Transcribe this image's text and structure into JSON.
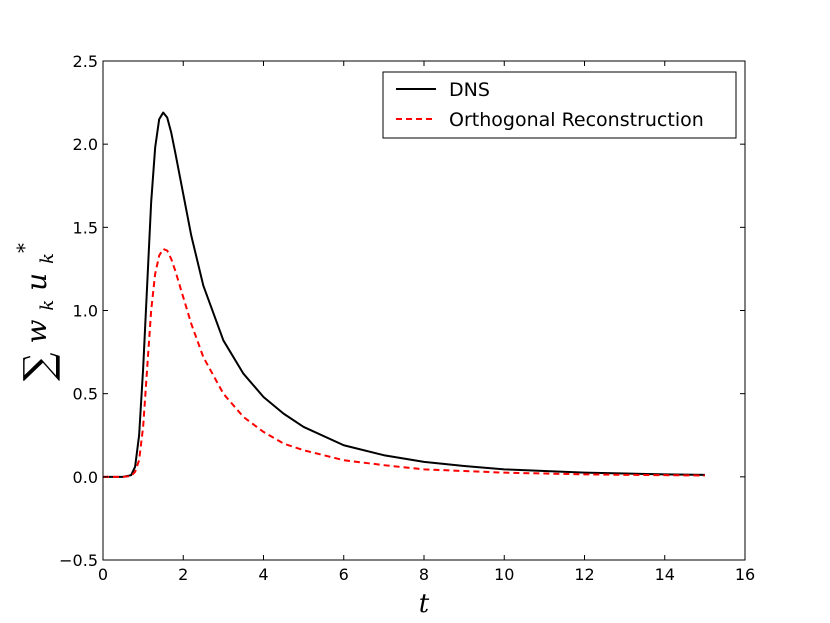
{
  "chart_data": {
    "type": "line",
    "title": "",
    "xlabel": "t",
    "ylabel": "∑ w_k u_k*",
    "ylabel_parts": {
      "sum": "∑",
      "w": "w",
      "w_sub": "k",
      "u": "u",
      "u_sub": "k",
      "u_sup": "*"
    },
    "xlim": [
      0,
      16
    ],
    "ylim": [
      -0.5,
      2.5
    ],
    "xticks": [
      0,
      2,
      4,
      6,
      8,
      10,
      12,
      14,
      16
    ],
    "xtick_labels": [
      "0",
      "2",
      "4",
      "6",
      "8",
      "10",
      "12",
      "14",
      "16"
    ],
    "yticks": [
      -0.5,
      0.0,
      0.5,
      1.0,
      1.5,
      2.0,
      2.5
    ],
    "ytick_labels": [
      "−0.5",
      "0.0",
      "0.5",
      "1.0",
      "1.5",
      "2.0",
      "2.5"
    ],
    "grid": false,
    "legend_position": "top-right",
    "x": [
      0,
      0.5,
      0.7,
      0.8,
      0.9,
      1.0,
      1.1,
      1.2,
      1.3,
      1.4,
      1.5,
      1.6,
      1.7,
      1.8,
      2.0,
      2.2,
      2.5,
      3.0,
      3.5,
      4.0,
      4.5,
      5.0,
      6.0,
      7.0,
      8.0,
      9.0,
      10.0,
      11.0,
      12.0,
      13.0,
      14.0,
      15.0
    ],
    "series": [
      {
        "name": "DNS",
        "color": "#000000",
        "style": "solid",
        "values": [
          0,
          0,
          0.01,
          0.06,
          0.25,
          0.65,
          1.15,
          1.65,
          1.98,
          2.15,
          2.19,
          2.16,
          2.07,
          1.95,
          1.7,
          1.45,
          1.15,
          0.82,
          0.62,
          0.48,
          0.38,
          0.3,
          0.19,
          0.13,
          0.09,
          0.065,
          0.045,
          0.035,
          0.025,
          0.02,
          0.015,
          0.012
        ]
      },
      {
        "name": "Orthogonal Reconstruction",
        "color": "#ff0000",
        "style": "dashed",
        "values": [
          0,
          0,
          0.005,
          0.03,
          0.1,
          0.3,
          0.65,
          1.0,
          1.22,
          1.33,
          1.37,
          1.36,
          1.31,
          1.24,
          1.08,
          0.92,
          0.72,
          0.5,
          0.36,
          0.27,
          0.2,
          0.16,
          0.1,
          0.07,
          0.045,
          0.035,
          0.025,
          0.02,
          0.015,
          0.012,
          0.01,
          0.008
        ]
      }
    ]
  }
}
